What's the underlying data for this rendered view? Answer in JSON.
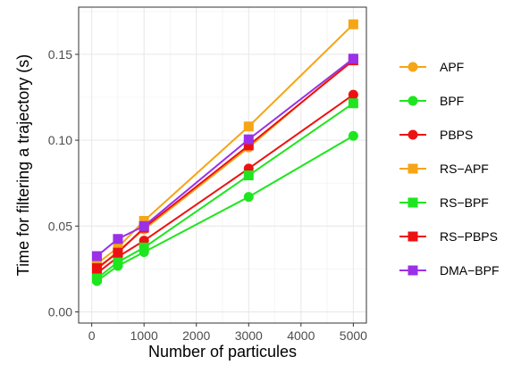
{
  "chart_data": {
    "type": "line",
    "title": "",
    "xlabel": "Number of particules",
    "ylabel": "Time for filtering a trajectory (s)",
    "x": [
      100,
      500,
      1000,
      3000,
      5000
    ],
    "xlim": [
      -250,
      5250
    ],
    "ylim": [
      -0.0065,
      0.1775
    ],
    "x_ticks": [
      0,
      1000,
      2000,
      3000,
      4000,
      5000
    ],
    "y_ticks": [
      0.0,
      0.05,
      0.1,
      0.15
    ],
    "x_tick_labels": [
      "0",
      "1000",
      "2000",
      "3000",
      "4000",
      "5000"
    ],
    "y_tick_labels": [
      "0.00",
      "0.05",
      "0.10",
      "0.15"
    ],
    "grid": true,
    "legend_position": "right",
    "series": [
      {
        "name": "APF",
        "values": [
          0.0245,
          0.0355,
          0.048,
          0.0958,
          0.1475
        ],
        "color": "#f5a516",
        "marker": "circle"
      },
      {
        "name": "BPF",
        "values": [
          0.018,
          0.0268,
          0.0348,
          0.067,
          0.1025
        ],
        "color": "#1ee61e",
        "marker": "circle"
      },
      {
        "name": "PBPS",
        "values": [
          0.0225,
          0.032,
          0.0415,
          0.0835,
          0.1265
        ],
        "color": "#ee1111",
        "marker": "circle"
      },
      {
        "name": "RS−APF",
        "values": [
          0.028,
          0.0375,
          0.053,
          0.108,
          0.1675
        ],
        "color": "#f5a516",
        "marker": "square"
      },
      {
        "name": "RS−BPF",
        "values": [
          0.0195,
          0.029,
          0.0375,
          0.0795,
          0.1215
        ],
        "color": "#1ee61e",
        "marker": "square"
      },
      {
        "name": "RS−PBPS",
        "values": [
          0.0255,
          0.0345,
          0.049,
          0.097,
          0.1465
        ],
        "color": "#ee1111",
        "marker": "square"
      },
      {
        "name": "DMA−BPF",
        "values": [
          0.0325,
          0.0425,
          0.05,
          0.1005,
          0.1475
        ],
        "color": "#9b30e8",
        "marker": "square"
      }
    ]
  }
}
